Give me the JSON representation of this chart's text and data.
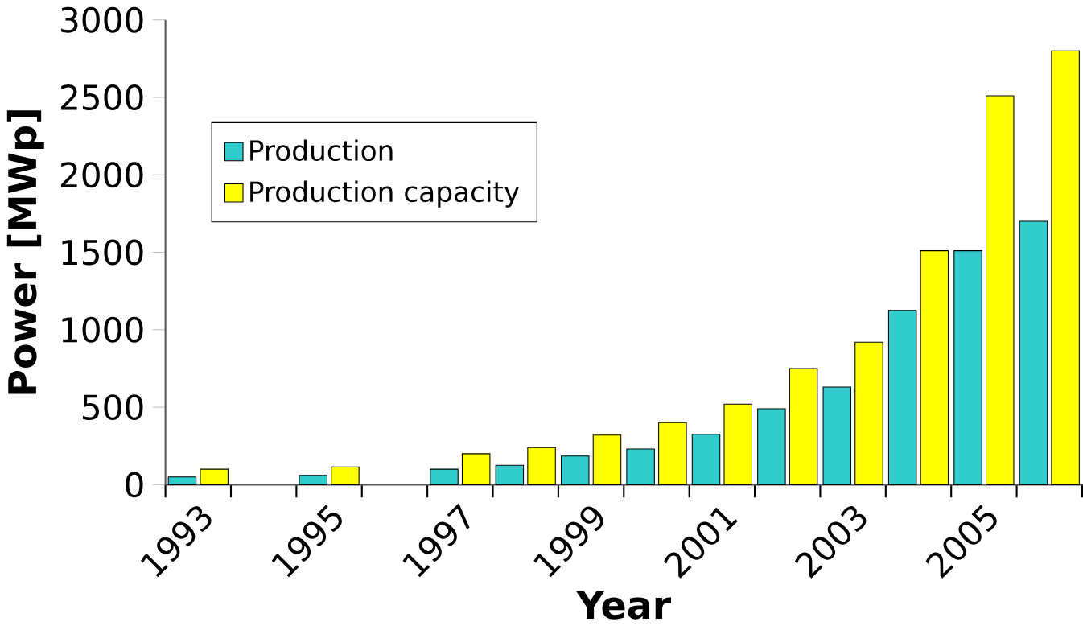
{
  "chart_data": {
    "type": "bar",
    "xlabel": "Year",
    "ylabel": "Power [MWp]",
    "categories": [
      "1993",
      null,
      "1995",
      null,
      "1997",
      null,
      "1999",
      null,
      "2001",
      null,
      "2003",
      null,
      "2005",
      null
    ],
    "series": [
      {
        "name": "Production",
        "color": "#33cccc",
        "values": [
          50,
          null,
          60,
          null,
          100,
          125,
          185,
          230,
          325,
          490,
          630,
          1125,
          1510,
          1700
        ]
      },
      {
        "name": "Production capacity",
        "color": "#ffff00",
        "values": [
          100,
          null,
          115,
          null,
          200,
          240,
          320,
          400,
          520,
          750,
          920,
          1510,
          2510,
          2800
        ]
      }
    ],
    "ylim": [
      0,
      3000
    ],
    "yticks": [
      0,
      500,
      1000,
      1500,
      2000,
      2500,
      3000
    ],
    "legend": "top left"
  }
}
